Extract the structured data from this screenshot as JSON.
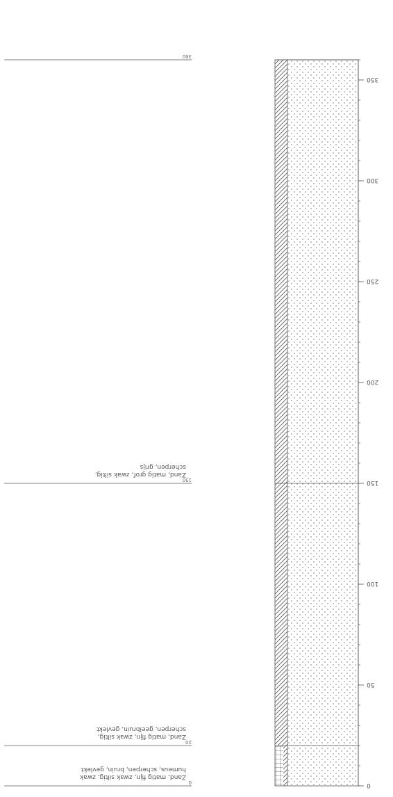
{
  "depth_axis": {
    "ticks": [
      "0",
      "50",
      "100",
      "150",
      "200",
      "250",
      "300",
      "350"
    ],
    "values": [
      0,
      50,
      100,
      150,
      200,
      250,
      300,
      350
    ],
    "max": 360,
    "minor_step": 10
  },
  "layers": [
    {
      "top": 0,
      "bottom": 20,
      "description": [
        "Zand, matig fijn, zwak siltig, zwak",
        "humeus, scherpen, bruin, gevlekt"
      ],
      "patterns": [
        "grid",
        "dots"
      ]
    },
    {
      "top": 20,
      "bottom": 150,
      "description": [
        "Zand, matig fijn, zwak siltig,",
        "scherpen, geelbruin, gevlekt"
      ],
      "patterns": [
        "hatch",
        "dots"
      ]
    },
    {
      "top": 150,
      "bottom": 360,
      "description": [
        "Zand, matig grof, zwak siltig,",
        "scherpen, grijs"
      ],
      "patterns": [
        "hatch",
        "dots"
      ]
    }
  ],
  "boundary_labels": [
    "0",
    "20",
    "150",
    "360"
  ]
}
